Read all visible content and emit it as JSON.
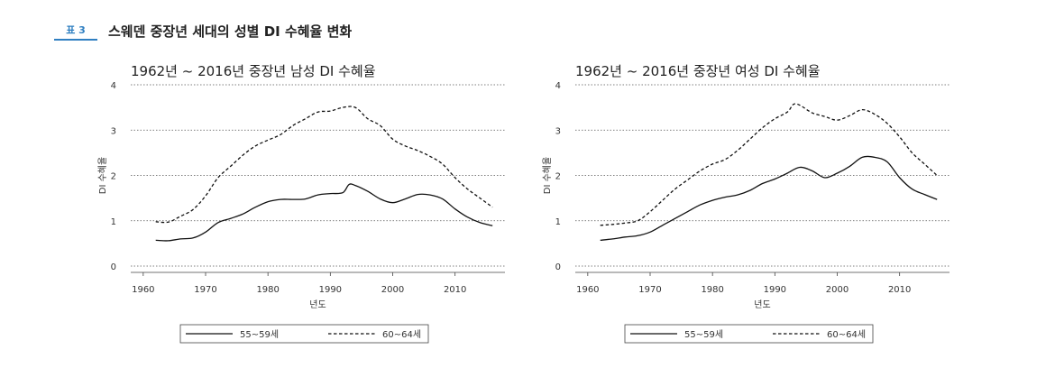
{
  "header": {
    "badge": "표 3",
    "title": "스웨덴 중장년 세대의 성별 DI 수혜율 변화"
  },
  "chart_data": [
    {
      "type": "line",
      "title": "1962년 ~ 2016년 중장년 남성 DI 수혜율",
      "xlabel": "년도",
      "ylabel": "DI 수혜율",
      "xlim": [
        1958,
        2018
      ],
      "ylim": [
        0,
        4
      ],
      "xticks": [
        1960,
        1970,
        1980,
        1990,
        2000,
        2010
      ],
      "yticks": [
        0,
        1,
        2,
        3,
        4
      ],
      "grid": "horizontal dotted",
      "legend": "bottom",
      "series": [
        {
          "name": "55~59세",
          "dash": "solid",
          "x": [
            1962,
            1964,
            1966,
            1968,
            1970,
            1972,
            1974,
            1976,
            1978,
            1980,
            1982,
            1984,
            1986,
            1988,
            1990,
            1992,
            1993,
            1994,
            1996,
            1998,
            2000,
            2002,
            2004,
            2006,
            2008,
            2010,
            2012,
            2014,
            2016
          ],
          "y": [
            0.57,
            0.56,
            0.6,
            0.62,
            0.75,
            0.96,
            1.05,
            1.15,
            1.3,
            1.42,
            1.47,
            1.47,
            1.48,
            1.57,
            1.6,
            1.62,
            1.8,
            1.78,
            1.65,
            1.48,
            1.4,
            1.48,
            1.58,
            1.57,
            1.48,
            1.26,
            1.08,
            0.96,
            0.89
          ]
        },
        {
          "name": "60~64세",
          "dash": "dashed",
          "x": [
            1962,
            1964,
            1966,
            1968,
            1970,
            1972,
            1974,
            1976,
            1978,
            1980,
            1982,
            1984,
            1986,
            1988,
            1990,
            1992,
            1994,
            1996,
            1998,
            2000,
            2002,
            2004,
            2006,
            2008,
            2010,
            2012,
            2014,
            2016
          ],
          "y": [
            0.98,
            0.97,
            1.1,
            1.25,
            1.55,
            1.95,
            2.2,
            2.45,
            2.65,
            2.78,
            2.9,
            3.1,
            3.25,
            3.4,
            3.42,
            3.5,
            3.5,
            3.25,
            3.1,
            2.8,
            2.65,
            2.55,
            2.42,
            2.25,
            1.95,
            1.7,
            1.5,
            1.3
          ]
        }
      ]
    },
    {
      "type": "line",
      "title": "1962년 ~ 2016년 중장년 여성 DI 수혜율",
      "xlabel": "년도",
      "ylabel": "DI 수혜율",
      "xlim": [
        1958,
        2018
      ],
      "ylim": [
        0,
        4
      ],
      "xticks": [
        1960,
        1970,
        1980,
        1990,
        2000,
        2010
      ],
      "yticks": [
        0,
        1,
        2,
        3,
        4
      ],
      "grid": "horizontal dotted",
      "legend": "bottom",
      "series": [
        {
          "name": "55~59세",
          "dash": "solid",
          "x": [
            1962,
            1964,
            1966,
            1968,
            1970,
            1972,
            1974,
            1976,
            1978,
            1980,
            1982,
            1984,
            1986,
            1988,
            1990,
            1992,
            1994,
            1996,
            1998,
            2000,
            2002,
            2004,
            2006,
            2008,
            2010,
            2012,
            2014,
            2016
          ],
          "y": [
            0.57,
            0.6,
            0.64,
            0.67,
            0.75,
            0.9,
            1.05,
            1.2,
            1.35,
            1.45,
            1.52,
            1.57,
            1.67,
            1.82,
            1.92,
            2.05,
            2.18,
            2.1,
            1.95,
            2.05,
            2.2,
            2.4,
            2.4,
            2.3,
            1.95,
            1.7,
            1.58,
            1.47
          ]
        },
        {
          "name": "60~64세",
          "dash": "dashed",
          "x": [
            1962,
            1964,
            1966,
            1968,
            1970,
            1972,
            1974,
            1976,
            1978,
            1980,
            1982,
            1984,
            1986,
            1988,
            1990,
            1992,
            1993,
            1994,
            1996,
            1998,
            2000,
            2002,
            2004,
            2006,
            2008,
            2010,
            2012,
            2014,
            2016
          ],
          "y": [
            0.9,
            0.92,
            0.95,
            1.0,
            1.2,
            1.45,
            1.7,
            1.9,
            2.1,
            2.25,
            2.35,
            2.55,
            2.8,
            3.05,
            3.25,
            3.4,
            3.57,
            3.55,
            3.38,
            3.3,
            3.22,
            3.32,
            3.45,
            3.35,
            3.15,
            2.85,
            2.5,
            2.25,
            2.0
          ]
        }
      ]
    }
  ]
}
